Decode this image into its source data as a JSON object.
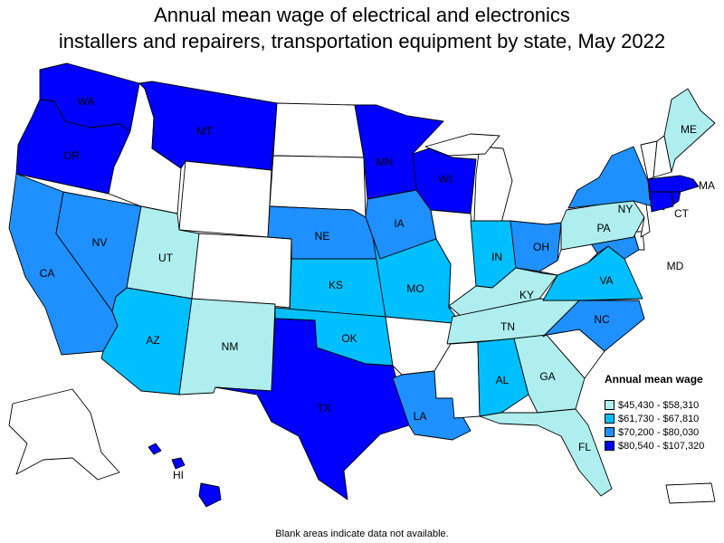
{
  "title": {
    "line1": "Annual mean wage of electrical and electronics",
    "line2": "installers and repairers, transportation equipment by state, May 2022"
  },
  "legend": {
    "title": "Annual mean wage",
    "classes": [
      {
        "range": "$45,430 - $58,310",
        "color": "#aeeeee"
      },
      {
        "range": "$61,730 - $67,810",
        "color": "#00bfff"
      },
      {
        "range": "$70,200 - $80,030",
        "color": "#1e90ff"
      },
      {
        "range": "$80,540 - $107,320",
        "color": "#0000ff"
      }
    ]
  },
  "footnote": "Blank areas indicate data not available.",
  "map_data": {
    "no_data_color": "#ffffff",
    "states": [
      {
        "abbr": "WA",
        "class": 3
      },
      {
        "abbr": "OR",
        "class": 3
      },
      {
        "abbr": "CA",
        "class": 2
      },
      {
        "abbr": "NV",
        "class": 2
      },
      {
        "abbr": "ID",
        "class": null
      },
      {
        "abbr": "MT",
        "class": 3
      },
      {
        "abbr": "WY",
        "class": null
      },
      {
        "abbr": "UT",
        "class": 0
      },
      {
        "abbr": "AZ",
        "class": 1
      },
      {
        "abbr": "CO",
        "class": null
      },
      {
        "abbr": "NM",
        "class": 0
      },
      {
        "abbr": "ND",
        "class": null
      },
      {
        "abbr": "SD",
        "class": null
      },
      {
        "abbr": "NE",
        "class": 2
      },
      {
        "abbr": "KS",
        "class": 1
      },
      {
        "abbr": "OK",
        "class": 1
      },
      {
        "abbr": "TX",
        "class": 3
      },
      {
        "abbr": "MN",
        "class": 3
      },
      {
        "abbr": "IA",
        "class": 2
      },
      {
        "abbr": "MO",
        "class": 1
      },
      {
        "abbr": "AR",
        "class": null
      },
      {
        "abbr": "LA",
        "class": 2
      },
      {
        "abbr": "WI",
        "class": 3
      },
      {
        "abbr": "IL",
        "class": null
      },
      {
        "abbr": "MI",
        "class": null
      },
      {
        "abbr": "IN",
        "class": 1
      },
      {
        "abbr": "OH",
        "class": 2
      },
      {
        "abbr": "KY",
        "class": 0
      },
      {
        "abbr": "TN",
        "class": 0
      },
      {
        "abbr": "MS",
        "class": null
      },
      {
        "abbr": "AL",
        "class": 1
      },
      {
        "abbr": "GA",
        "class": 0
      },
      {
        "abbr": "FL",
        "class": 0
      },
      {
        "abbr": "SC",
        "class": null
      },
      {
        "abbr": "NC",
        "class": 2
      },
      {
        "abbr": "VA",
        "class": 1
      },
      {
        "abbr": "WV",
        "class": null
      },
      {
        "abbr": "MD",
        "class": 2
      },
      {
        "abbr": "DE",
        "class": null
      },
      {
        "abbr": "PA",
        "class": 0
      },
      {
        "abbr": "NJ",
        "class": null
      },
      {
        "abbr": "NY",
        "class": 2
      },
      {
        "abbr": "CT",
        "class": 3
      },
      {
        "abbr": "RI",
        "class": 3
      },
      {
        "abbr": "MA",
        "class": 3
      },
      {
        "abbr": "VT",
        "class": null
      },
      {
        "abbr": "NH",
        "class": null
      },
      {
        "abbr": "ME",
        "class": 0
      },
      {
        "abbr": "AK",
        "class": null
      },
      {
        "abbr": "HI",
        "class": 3
      },
      {
        "abbr": "PR",
        "class": null
      }
    ],
    "labels": [
      "WA",
      "OR",
      "CA",
      "NV",
      "MT",
      "UT",
      "AZ",
      "NM",
      "NE",
      "KS",
      "OK",
      "TX",
      "MN",
      "IA",
      "MO",
      "LA",
      "WI",
      "IN",
      "OH",
      "KY",
      "TN",
      "AL",
      "GA",
      "FL",
      "NC",
      "VA",
      "MD",
      "PA",
      "NY",
      "CT",
      "MA",
      "ME",
      "HI"
    ]
  }
}
